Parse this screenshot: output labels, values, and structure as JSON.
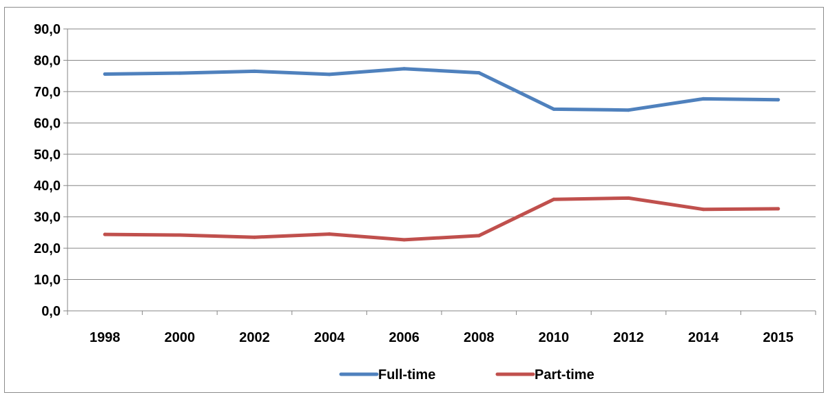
{
  "chart_data": {
    "type": "line",
    "categories": [
      "1998",
      "2000",
      "2002",
      "2004",
      "2006",
      "2008",
      "2010",
      "2012",
      "2014",
      "2015"
    ],
    "series": [
      {
        "name": "Full-time",
        "color": "#4f81bd",
        "values": [
          75.6,
          75.9,
          76.5,
          75.5,
          77.3,
          76.0,
          64.4,
          64.1,
          67.7,
          67.4
        ]
      },
      {
        "name": "Part-time",
        "color": "#c0504d",
        "values": [
          24.4,
          24.2,
          23.5,
          24.5,
          22.7,
          24.0,
          35.6,
          36.0,
          32.4,
          32.6
        ]
      }
    ],
    "ylim": [
      0,
      90
    ],
    "yticks": [
      "0,0",
      "10,0",
      "20,0",
      "30,0",
      "40,0",
      "50,0",
      "60,0",
      "70,0",
      "80,0",
      "90,0"
    ],
    "grid": true,
    "legend_position": "bottom",
    "title": "",
    "xlabel": "",
    "ylabel": ""
  }
}
